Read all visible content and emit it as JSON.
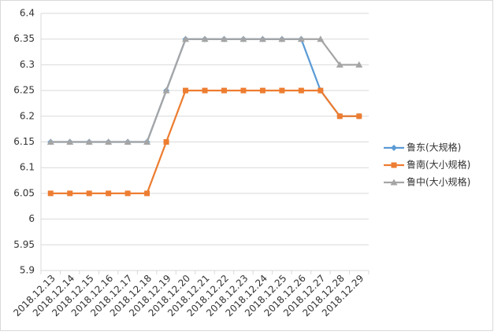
{
  "chart_data": {
    "type": "line",
    "categories": [
      "2018.12.13",
      "2018.12.14",
      "2018.12.15",
      "2018.12.16",
      "2018.12.17",
      "2018.12.18",
      "2018.12.19",
      "2018.12.20",
      "2018.12.21",
      "2018.12.22",
      "2018.12.23",
      "2018.12.24",
      "2018.12.25",
      "2018.12.26",
      "2018.12.27",
      "2018.12.28",
      "2018.12.29"
    ],
    "series": [
      {
        "name": "鲁东(大规格)",
        "color": "#5b9bd5",
        "marker": "diamond",
        "values": [
          6.15,
          6.15,
          6.15,
          6.15,
          6.15,
          6.15,
          6.25,
          6.35,
          6.35,
          6.35,
          6.35,
          6.35,
          6.35,
          6.35,
          6.25,
          6.2,
          6.2
        ]
      },
      {
        "name": "鲁南(大小规格)",
        "color": "#ed7d31",
        "marker": "square",
        "values": [
          6.05,
          6.05,
          6.05,
          6.05,
          6.05,
          6.05,
          6.15,
          6.25,
          6.25,
          6.25,
          6.25,
          6.25,
          6.25,
          6.25,
          6.25,
          6.2,
          6.2
        ]
      },
      {
        "name": "鲁中(大小规格)",
        "color": "#a5a5a5",
        "marker": "triangle",
        "values": [
          6.15,
          6.15,
          6.15,
          6.15,
          6.15,
          6.15,
          6.25,
          6.35,
          6.35,
          6.35,
          6.35,
          6.35,
          6.35,
          6.35,
          6.35,
          6.3,
          6.3
        ]
      }
    ],
    "ylim": [
      5.9,
      6.4
    ],
    "yticks": [
      5.9,
      5.95,
      6,
      6.05,
      6.1,
      6.15,
      6.2,
      6.25,
      6.3,
      6.35,
      6.4
    ],
    "grid": true,
    "legend": "right"
  }
}
